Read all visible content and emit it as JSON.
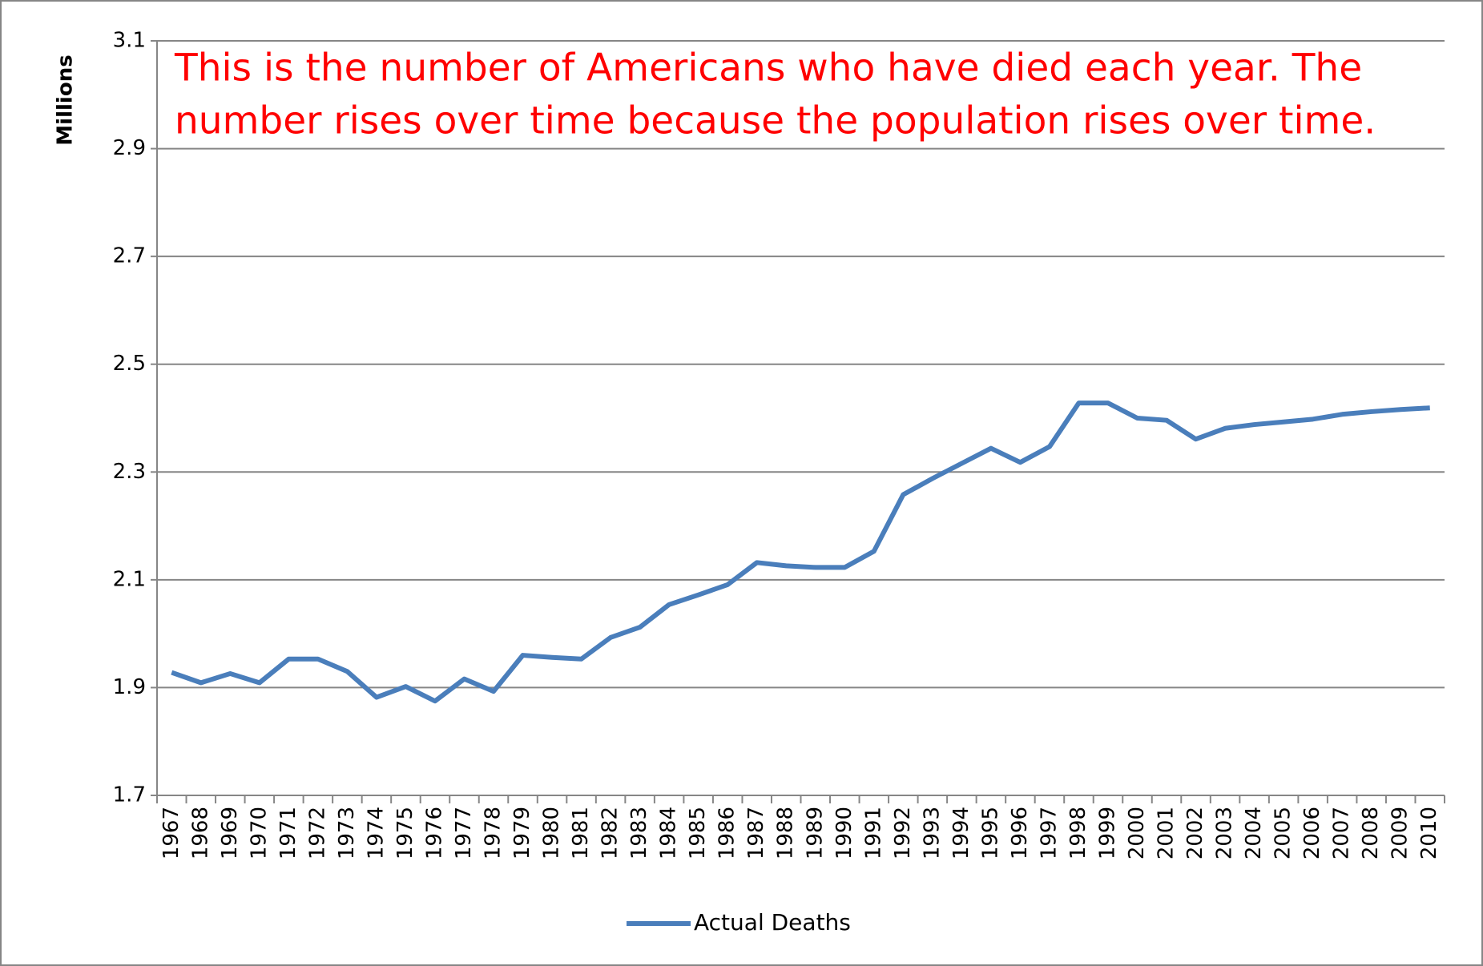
{
  "chart_data": {
    "type": "line",
    "y_axis_label": "Millions",
    "annotation": [
      "This is the number of Americans who have died each year. The",
      "number rises over time because the population rises over time."
    ],
    "categories": [
      "1967",
      "1968",
      "1969",
      "1970",
      "1971",
      "1972",
      "1973",
      "1974",
      "1975",
      "1976",
      "1977",
      "1978",
      "1979",
      "1980",
      "1981",
      "1982",
      "1983",
      "1984",
      "1985",
      "1986",
      "1987",
      "1988",
      "1989",
      "1990",
      "1991",
      "1992",
      "1993",
      "1994",
      "1995",
      "1996",
      "1997",
      "1998",
      "1999",
      "2000",
      "2001",
      "2002",
      "2003",
      "2004",
      "2005",
      "2006",
      "2007",
      "2008",
      "2009",
      "2010"
    ],
    "series": [
      {
        "name": "Actual Deaths",
        "color": "#4a7ebb",
        "values": [
          1.928,
          1.909,
          1.926,
          1.909,
          1.953,
          1.953,
          1.93,
          1.882,
          1.902,
          1.875,
          1.916,
          1.893,
          1.96,
          1.956,
          1.953,
          1.993,
          2.012,
          2.054,
          2.072,
          2.091,
          2.132,
          2.126,
          2.123,
          2.123,
          2.153,
          2.258,
          2.288,
          2.316,
          2.344,
          2.318,
          2.347,
          2.428,
          2.428,
          2.4,
          2.396,
          2.361,
          2.381,
          2.388,
          2.393,
          2.398,
          2.407,
          2.412,
          2.416,
          2.419
        ]
      }
    ],
    "ylim": [
      1.7,
      3.1
    ],
    "yticks": [
      1.7,
      1.9,
      2.1,
      2.3,
      2.5,
      2.7,
      2.9,
      3.1
    ],
    "grid": true,
    "legend": "bottom"
  }
}
